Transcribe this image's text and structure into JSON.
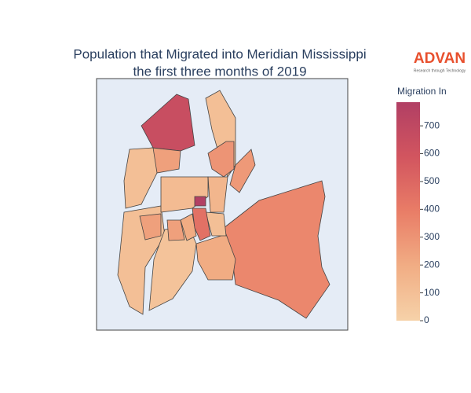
{
  "chart_data": {
    "type": "choropleth",
    "title": [
      "Population that Migrated into Meridian Mississippi",
      "the first three months of 2019"
    ],
    "logo": {
      "name": "ADVAN",
      "tagline": "Research through Technology"
    },
    "colorbar_title": "Migration In",
    "zlim": [
      0,
      785
    ],
    "zticks": [
      0,
      100,
      200,
      300,
      400,
      500,
      600,
      700
    ],
    "colorscale": [
      "#f6d2a9",
      "#f1ad84",
      "#e97d67",
      "#d2555f",
      "#b13f64"
    ],
    "background": "#e5ecf6",
    "regions": {
      "values": [
        350,
        200,
        650,
        100,
        280,
        300,
        250,
        100,
        100,
        80,
        250,
        120,
        200,
        250,
        150,
        100,
        450,
        780
      ]
    }
  }
}
